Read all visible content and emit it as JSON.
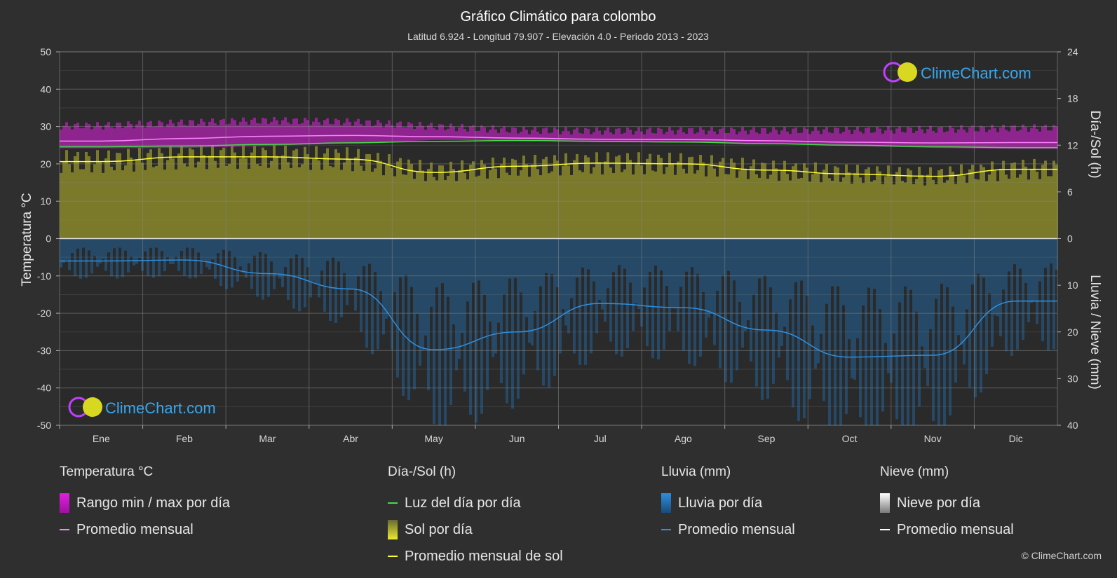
{
  "header": {
    "title": "Gráfico Climático para colombo",
    "subtitle": "Latitud 6.924 - Longitud 79.907 - Elevación 4.0 - Periodo 2013 - 2023"
  },
  "axes": {
    "left_label": "Temperatura °C",
    "right_top_label": "Día-/Sol (h)",
    "right_bottom_label": "Lluvia / Nieve (mm)",
    "left_ticks": [
      "50",
      "40",
      "30",
      "20",
      "10",
      "0",
      "-10",
      "-20",
      "-30",
      "-40",
      "-50"
    ],
    "right_top_ticks": [
      "24",
      "18",
      "12",
      "6",
      "0"
    ],
    "right_bottom_ticks": [
      "10",
      "20",
      "30",
      "40"
    ]
  },
  "chart_data": {
    "type": "area",
    "categories": [
      "Ene",
      "Feb",
      "Mar",
      "Abr",
      "May",
      "Jun",
      "Jul",
      "Ago",
      "Sep",
      "Oct",
      "Nov",
      "Dic"
    ],
    "ylim_temperature": [
      -50,
      50
    ],
    "ylim_daylight_sun_h": [
      0,
      24
    ],
    "ylim_rain_snow_mm": [
      0,
      40
    ],
    "grid": true,
    "series": [
      {
        "name": "Rango min / max por día",
        "unit": "°C",
        "min": [
          24.2,
          24.3,
          24.8,
          25.6,
          26.4,
          26.3,
          25.8,
          25.7,
          25.4,
          24.8,
          24.3,
          24.0
        ],
        "max": [
          30.2,
          31.0,
          31.6,
          31.2,
          30.0,
          29.0,
          28.8,
          28.9,
          28.9,
          29.0,
          29.2,
          29.6
        ]
      },
      {
        "name": "Promedio mensual",
        "unit": "°C",
        "values": [
          26.1,
          26.8,
          27.4,
          27.6,
          27.3,
          26.9,
          26.6,
          26.5,
          26.2,
          25.8,
          25.6,
          25.7
        ]
      },
      {
        "name": "Luz del día por día",
        "unit": "h",
        "values": [
          11.8,
          11.9,
          12.1,
          12.3,
          12.5,
          12.6,
          12.5,
          12.4,
          12.2,
          12.0,
          11.8,
          11.7
        ]
      },
      {
        "name": "Sol por día",
        "unit": "h",
        "values": [
          9.9,
          10.5,
          10.5,
          10.2,
          8.5,
          9.3,
          9.7,
          9.6,
          8.8,
          8.3,
          8.0,
          8.9
        ]
      },
      {
        "name": "Promedio mensual de sol",
        "unit": "h",
        "values": [
          9.9,
          10.5,
          10.5,
          10.2,
          8.5,
          9.3,
          9.7,
          9.6,
          8.8,
          8.3,
          8.0,
          8.9
        ]
      },
      {
        "name": "Lluvia por día",
        "unit": "mm",
        "values": [
          4.8,
          4.6,
          7.5,
          10.8,
          23.8,
          20.0,
          13.9,
          14.8,
          19.6,
          25.4,
          25.0,
          13.4
        ]
      },
      {
        "name": "Promedio mensual",
        "unit": "mm",
        "values": [
          4.8,
          4.6,
          7.5,
          10.8,
          23.8,
          20.0,
          13.9,
          14.8,
          19.6,
          25.4,
          25.0,
          13.4
        ]
      },
      {
        "name": "Nieve por día",
        "unit": "mm",
        "values": [
          0,
          0,
          0,
          0,
          0,
          0,
          0,
          0,
          0,
          0,
          0,
          0
        ]
      },
      {
        "name": "Promedio mensual",
        "unit": "mm",
        "values": [
          0,
          0,
          0,
          0,
          0,
          0,
          0,
          0,
          0,
          0,
          0,
          0
        ]
      }
    ]
  },
  "legend": {
    "temp": {
      "title": "Temperatura °C",
      "range": "Rango min / max por día",
      "avg": "Promedio mensual"
    },
    "sun": {
      "title": "Día-/Sol (h)",
      "daylight": "Luz del día por día",
      "sun": "Sol por día",
      "sun_avg": "Promedio mensual de sol"
    },
    "rain": {
      "title": "Lluvia (mm)",
      "rain": "Lluvia por día",
      "avg": "Promedio mensual"
    },
    "snow": {
      "title": "Nieve (mm)",
      "snow": "Nieve por día",
      "avg": "Promedio mensual"
    }
  },
  "logo": {
    "text": "ClimeChart.com"
  },
  "copyright": "© ClimeChart.com",
  "colors": {
    "background": "#2f2f2f",
    "temp_range": "#e020e0",
    "temp_avg": "#ff80ff",
    "daylight": "#44dd44",
    "sun": "#bcbc2a",
    "sun_avg": "#ffff33",
    "rain": "#1e6fb0",
    "rain_avg": "#2e8fe0",
    "snow_avg": "#ffffff"
  }
}
